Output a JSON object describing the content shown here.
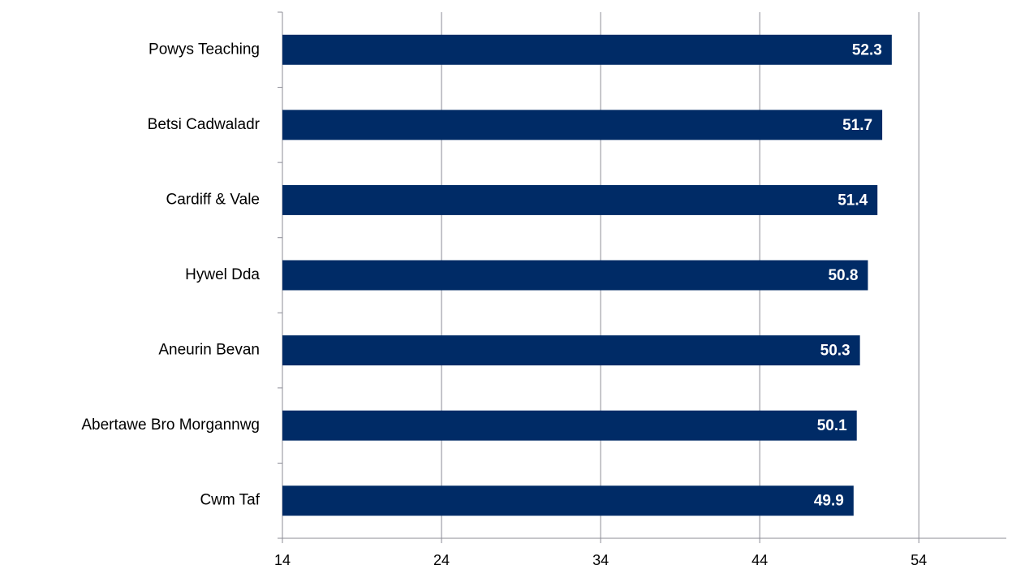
{
  "chart_data": {
    "type": "bar",
    "orientation": "horizontal",
    "categories": [
      "Powys Teaching",
      "Betsi Cadwaladr",
      "Cardiff & Vale",
      "Hywel Dda",
      "Aneurin Bevan",
      "Abertawe Bro Morgannwg",
      "Cwm Taf"
    ],
    "values": [
      52.3,
      51.7,
      51.4,
      50.8,
      50.3,
      50.1,
      49.9
    ],
    "color": "#002b66",
    "xlim": [
      14,
      59.5
    ],
    "xticks": [
      14,
      24,
      34,
      44,
      54
    ],
    "grid": true
  }
}
